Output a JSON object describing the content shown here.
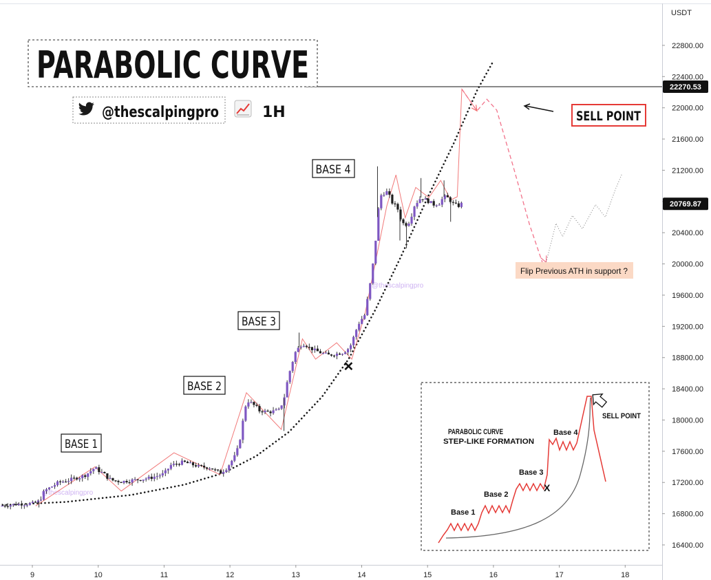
{
  "chart_data": {
    "type": "candlestick",
    "title": "PARABOLIC CURVE",
    "currency_label": "USDT",
    "handle": "@thescalpingpro",
    "timeframe": "1H",
    "icons": [
      "twitter-bird-icon",
      "chart-increasing-icon"
    ],
    "watermark": "@thescalpingpro",
    "x_ticks": [
      "9",
      "10",
      "11",
      "12",
      "13",
      "14",
      "15",
      "16",
      "17",
      "18"
    ],
    "y_ticks": [
      "16400.00",
      "16800.00",
      "17200.00",
      "17600.00",
      "18000.00",
      "18400.00",
      "18800.00",
      "19200.00",
      "19600.00",
      "20000.00",
      "20400.00",
      "20800.00",
      "21200.00",
      "21600.00",
      "22000.00",
      "22400.00",
      "22800.00"
    ],
    "ylim": [
      16210,
      23300
    ],
    "xlim": [
      8.55,
      18.55
    ],
    "price_labels": [
      {
        "value": 22270.53,
        "text": "22270.53",
        "style": "horizontal-line"
      },
      {
        "value": 20769.87,
        "text": "20769.87",
        "style": "last-price"
      }
    ],
    "base_labels": [
      "BASE 1",
      "BASE 2",
      "BASE 3",
      "BASE 4"
    ],
    "sell_label": "SELL POINT",
    "support_note": "Flip Previous ATH in support ?",
    "close_path": [
      [
        8.5,
        16900
      ],
      [
        8.75,
        16920
      ],
      [
        9.0,
        16930
      ],
      [
        9.1,
        16960
      ],
      [
        9.2,
        17100
      ],
      [
        9.4,
        17200
      ],
      [
        9.6,
        17240
      ],
      [
        9.8,
        17290
      ],
      [
        9.95,
        17390
      ],
      [
        10.05,
        17330
      ],
      [
        10.2,
        17230
      ],
      [
        10.35,
        17210
      ],
      [
        10.55,
        17230
      ],
      [
        10.8,
        17260
      ],
      [
        11.0,
        17310
      ],
      [
        11.1,
        17420
      ],
      [
        11.3,
        17460
      ],
      [
        11.55,
        17400
      ],
      [
        11.7,
        17390
      ],
      [
        11.85,
        17320
      ],
      [
        11.95,
        17390
      ],
      [
        12.1,
        17560
      ],
      [
        12.2,
        17980
      ],
      [
        12.25,
        18270
      ],
      [
        12.35,
        18200
      ],
      [
        12.45,
        18120
      ],
      [
        12.6,
        18100
      ],
      [
        12.75,
        18130
      ],
      [
        12.82,
        18280
      ],
      [
        12.9,
        18600
      ],
      [
        12.98,
        18850
      ],
      [
        13.1,
        18990
      ],
      [
        13.2,
        18930
      ],
      [
        13.35,
        18870
      ],
      [
        13.5,
        18830
      ],
      [
        13.7,
        18860
      ],
      [
        13.82,
        18930
      ],
      [
        13.88,
        19060
      ],
      [
        13.95,
        19240
      ],
      [
        14.05,
        19350
      ],
      [
        14.12,
        19680
      ],
      [
        14.18,
        20030
      ],
      [
        14.24,
        20600
      ],
      [
        14.3,
        20900
      ],
      [
        14.38,
        20920
      ],
      [
        14.45,
        20810
      ],
      [
        14.55,
        20700
      ],
      [
        14.62,
        20520
      ],
      [
        14.7,
        20500
      ],
      [
        14.8,
        20760
      ],
      [
        14.9,
        20850
      ],
      [
        15.0,
        20810
      ],
      [
        15.1,
        20760
      ],
      [
        15.18,
        20780
      ],
      [
        15.25,
        20860
      ],
      [
        15.32,
        20840
      ],
      [
        15.4,
        20760
      ],
      [
        15.46,
        20740
      ],
      [
        15.52,
        20770
      ]
    ],
    "wick_highs": [
      [
        14.24,
        21250
      ],
      [
        14.9,
        21100
      ],
      [
        15.25,
        21070
      ],
      [
        13.05,
        19120
      ]
    ],
    "wick_lows": [
      [
        14.68,
        20200
      ],
      [
        14.58,
        20300
      ],
      [
        15.35,
        20540
      ],
      [
        12.82,
        17860
      ],
      [
        9.1,
        16880
      ]
    ],
    "zigzag_path": [
      [
        9.05,
        16900
      ],
      [
        9.95,
        17400
      ],
      [
        10.35,
        17090
      ],
      [
        11.15,
        17580
      ],
      [
        11.85,
        17300
      ],
      [
        12.25,
        18350
      ],
      [
        12.78,
        17880
      ],
      [
        13.1,
        19040
      ],
      [
        13.3,
        18780
      ],
      [
        13.62,
        18990
      ],
      [
        13.85,
        18780
      ],
      [
        14.05,
        19360
      ],
      [
        14.38,
        20740
      ],
      [
        14.52,
        21140
      ],
      [
        14.66,
        20590
      ],
      [
        14.82,
        20980
      ],
      [
        15.02,
        20850
      ],
      [
        15.2,
        21070
      ],
      [
        15.35,
        20820
      ],
      [
        15.45,
        20860
      ],
      [
        15.52,
        22240
      ],
      [
        15.75,
        21960
      ]
    ],
    "projection_path": [
      [
        15.52,
        22240
      ],
      [
        15.75,
        21960
      ],
      [
        15.9,
        22110
      ],
      [
        16.05,
        21970
      ],
      [
        16.3,
        21250
      ],
      [
        16.55,
        20500
      ],
      [
        16.75,
        20000
      ],
      [
        16.8,
        20020
      ]
    ],
    "projection_arrow_tip": [
      16.8,
      20020
    ],
    "recovery_path": [
      [
        16.8,
        20020
      ],
      [
        16.95,
        20520
      ],
      [
        17.05,
        20350
      ],
      [
        17.2,
        20620
      ],
      [
        17.35,
        20450
      ],
      [
        17.55,
        20760
      ],
      [
        17.7,
        20600
      ],
      [
        17.85,
        20950
      ],
      [
        17.95,
        21150
      ]
    ],
    "parabola_path": [
      [
        8.55,
        16910
      ],
      [
        9.5,
        16950
      ],
      [
        10.5,
        17040
      ],
      [
        11.3,
        17170
      ],
      [
        11.9,
        17320
      ],
      [
        12.4,
        17540
      ],
      [
        12.9,
        17850
      ],
      [
        13.4,
        18300
      ],
      [
        13.8,
        18780
      ],
      [
        14.2,
        19400
      ],
      [
        14.6,
        20100
      ],
      [
        15.0,
        20850
      ],
      [
        15.4,
        21550
      ],
      [
        15.75,
        22220
      ],
      [
        16.0,
        22600
      ]
    ],
    "cross_marker": [
      13.8,
      18690
    ],
    "inset": {
      "title_line1": "PARABOLIC CURVE",
      "title_line2": "STEP-LIKE FORMATION",
      "bases": [
        "Base 1",
        "Base 2",
        "Base 3",
        "Base 4"
      ],
      "sell_label": "SELL POINT",
      "marker": "X"
    }
  },
  "colors": {
    "candle": "#7e57c2",
    "zigzag": "#f06a6a",
    "projection": "#f2728a",
    "recovery": "#7a7a7a",
    "curve": "#1a1a1a",
    "sell_border": "#e53935",
    "note_bg": "#fbd9c5"
  }
}
